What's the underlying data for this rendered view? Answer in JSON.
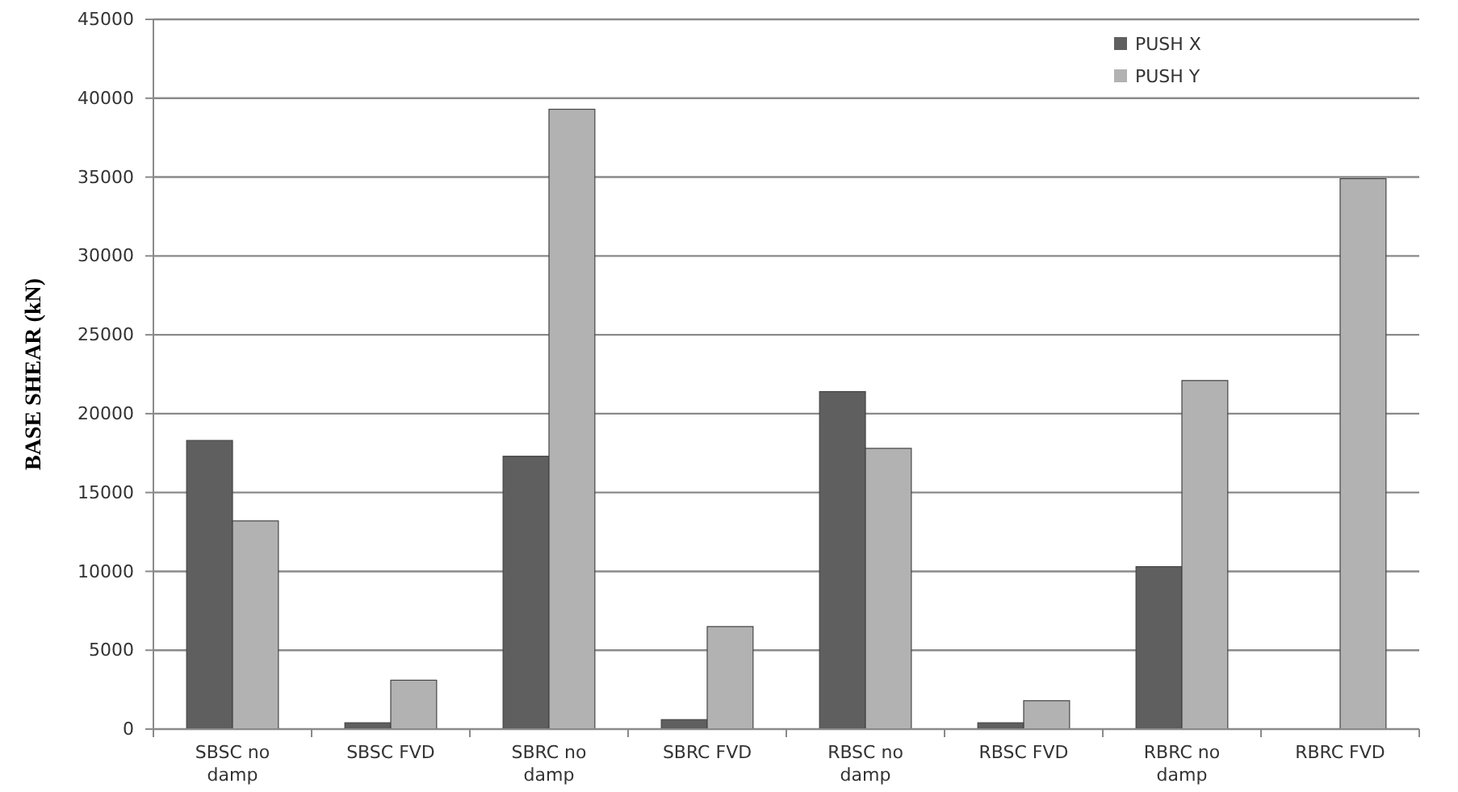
{
  "chart_data": {
    "type": "bar",
    "ylabel": "BASE SHEAR (kN)",
    "categories": [
      "SBSC no damp",
      "SBSC FVD",
      "SBRC no damp",
      "SBRC FVD",
      "RBSC no damp",
      "RBSC FVD",
      "RBRC no damp",
      "RBRC FVD"
    ],
    "series": [
      {
        "name": "PUSH X",
        "color": "#5f5f5f",
        "values": [
          18300,
          400,
          17300,
          600,
          21400,
          400,
          10300,
          0
        ]
      },
      {
        "name": "PUSH Y",
        "color": "#b2b2b2",
        "values": [
          13200,
          3100,
          39300,
          6500,
          17800,
          1800,
          22100,
          34900
        ]
      }
    ],
    "ylim": [
      0,
      45000
    ],
    "yticks": [
      0,
      5000,
      10000,
      15000,
      20000,
      25000,
      30000,
      35000,
      40000,
      45000
    ],
    "grid": "y",
    "legend": "top right"
  }
}
